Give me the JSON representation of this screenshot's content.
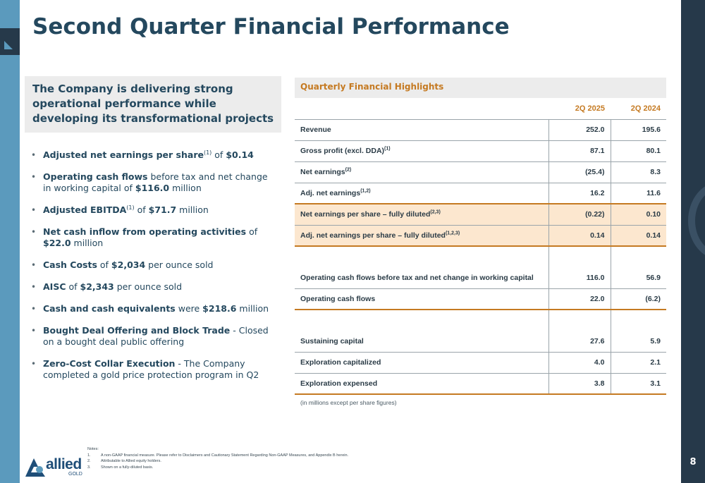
{
  "page": {
    "title": "Second Quarter Financial Performance",
    "page_number": "8"
  },
  "callout": {
    "text": "The Company is delivering strong operational performance while developing its transformational projects"
  },
  "bullets": [
    {
      "bold": "Adjusted net earnings per share",
      "sup": "(1)",
      "mid": " of ",
      "bold2": "$0.14",
      "rest": ""
    },
    {
      "bold": "Operating cash flows",
      "sup": "",
      "mid": " before tax and net change in working capital of ",
      "bold2": "$116.0",
      "rest": " million"
    },
    {
      "bold": "Adjusted EBITDA",
      "sup": "(1)",
      "mid": " of ",
      "bold2": "$71.7",
      "rest": " million"
    },
    {
      "bold": "Net cash inflow from operating activities",
      "sup": "",
      "mid": " of ",
      "bold2": "$22.0",
      "rest": " million"
    },
    {
      "bold": "Cash Costs",
      "sup": "",
      "mid": " of ",
      "bold2": "$2,034",
      "rest": " per ounce sold"
    },
    {
      "bold": "AISC",
      "sup": "",
      "mid": " of ",
      "bold2": "$2,343",
      "rest": " per ounce sold"
    },
    {
      "bold": "Cash and cash equivalents",
      "sup": "",
      "mid": " were ",
      "bold2": "$218.6",
      "rest": " million"
    },
    {
      "bold": "Bought Deal Offering and Block Trade",
      "sup": "",
      "mid": " - Closed on a bought deal public offering",
      "bold2": "",
      "rest": ""
    },
    {
      "bold": "Zero-Cost Collar Execution",
      "sup": "",
      "mid": " - The Company completed a gold price protection program in Q2",
      "bold2": "",
      "rest": ""
    }
  ],
  "table": {
    "header": "Quarterly Financial Highlights",
    "col1": "2Q 2025",
    "col2": "2Q 2024",
    "rows": [
      {
        "label": "Revenue",
        "sup": "",
        "v1": "252.0",
        "v2": "195.6"
      },
      {
        "label": "Gross profit (excl. DDA)",
        "sup": "(1)",
        "v1": "87.1",
        "v2": "80.1"
      },
      {
        "label": "Net earnings",
        "sup": "(2)",
        "v1": "(25.4)",
        "v2": "8.3"
      },
      {
        "label": "Adj. net earnings",
        "sup": "(1,2)",
        "v1": "16.2",
        "v2": "11.6"
      },
      {
        "label": "Net earnings per share – fully diluted",
        "sup": "(2,3)",
        "v1": "(0.22)",
        "v2": "0.10"
      },
      {
        "label": "Adj. net earnings per share – fully diluted",
        "sup": "(1,2,3)",
        "v1": "0.14",
        "v2": "0.14"
      },
      {
        "label": "Operating cash flows before tax and net change in working capital",
        "sup": "",
        "v1": "116.0",
        "v2": "56.9"
      },
      {
        "label": "Operating cash flows",
        "sup": "",
        "v1": "22.0",
        "v2": "(6.2)"
      },
      {
        "label": "Sustaining capital",
        "sup": "",
        "v1": "27.6",
        "v2": "5.9"
      },
      {
        "label": "Exploration capitalized",
        "sup": "",
        "v1": "4.0",
        "v2": "2.1"
      },
      {
        "label": "Exploration expensed",
        "sup": "",
        "v1": "3.8",
        "v2": "3.1"
      }
    ],
    "footnote": "(in millions except per share figures)"
  },
  "notes": {
    "heading": "Notes:",
    "items": [
      {
        "num": "1.",
        "text": "A non-GAAP financial measure. Please refer to Disclaimers and Cautionary Statement Regarding Non-GAAP Measures, and Appendix B herein."
      },
      {
        "num": "2.",
        "text": "Attributable to Allied equity holders."
      },
      {
        "num": "3.",
        "text": "Shown on a fully-diluted basis."
      }
    ]
  },
  "logo": {
    "word": "allied",
    "sub": "GOLD"
  }
}
